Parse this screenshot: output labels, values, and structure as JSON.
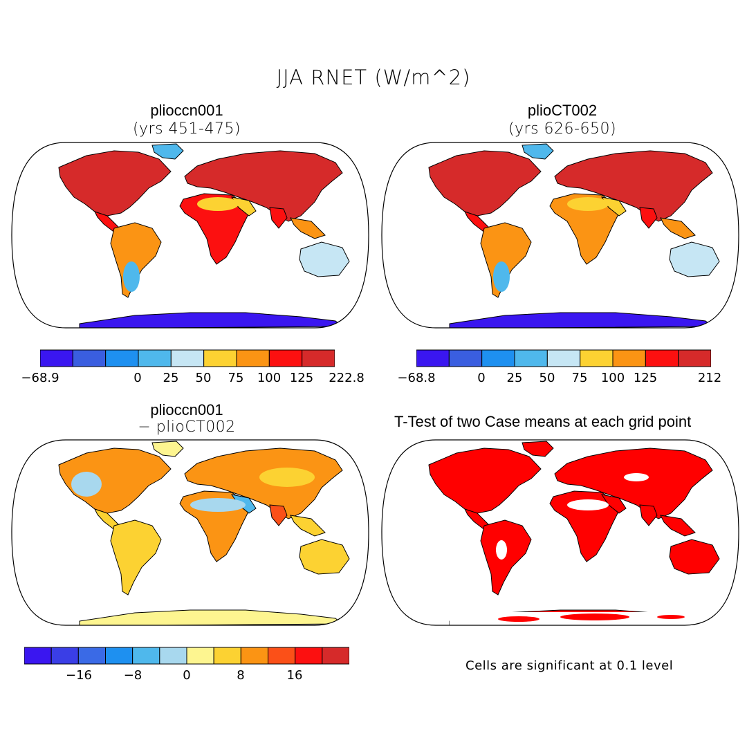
{
  "title": "JJA RNET (W/m^2)",
  "panels": [
    {
      "name": "plioccn001",
      "subtitle": "(yrs 451-475)"
    },
    {
      "name": "plioCT002",
      "subtitle": "(yrs 626-650)"
    },
    {
      "name": "plioccn001",
      "subtitle": "− plioCT002"
    },
    {
      "name": "T-Test of two Case means at each grid point"
    }
  ],
  "colorbars": [
    {
      "colors": [
        "#3a16f0",
        "#3a5ee0",
        "#1e90f0",
        "#4fb8ec",
        "#c6e6f4",
        "#fcd232",
        "#fb9414",
        "#fc1010",
        "#d62a2a"
      ],
      "labels": [
        "−68.9",
        "0",
        "25",
        "50",
        "75",
        "100",
        "125",
        "222.8"
      ]
    },
    {
      "colors": [
        "#3a16f0",
        "#3a5ee0",
        "#1e90f0",
        "#4fb8ec",
        "#c6e6f4",
        "#fcd232",
        "#fb9414",
        "#fc1010",
        "#d62a2a"
      ],
      "labels": [
        "−68.8",
        "0",
        "25",
        "50",
        "75",
        "100",
        "125",
        "212"
      ]
    },
    {
      "colors": [
        "#3a16f0",
        "#3a3ee6",
        "#3a6ae6",
        "#1e90f0",
        "#4fb8ec",
        "#a8d8ee",
        "#fdf590",
        "#fcd232",
        "#fb9414",
        "#fb5018",
        "#fc1010",
        "#d62a2a"
      ],
      "labels": [
        "−16",
        "−8",
        "0",
        "8",
        "16"
      ]
    }
  ],
  "significance_note": "Cells are significant at 0.1 level",
  "colors": {
    "significant": "#ff0000",
    "land_outline": "#000000"
  }
}
